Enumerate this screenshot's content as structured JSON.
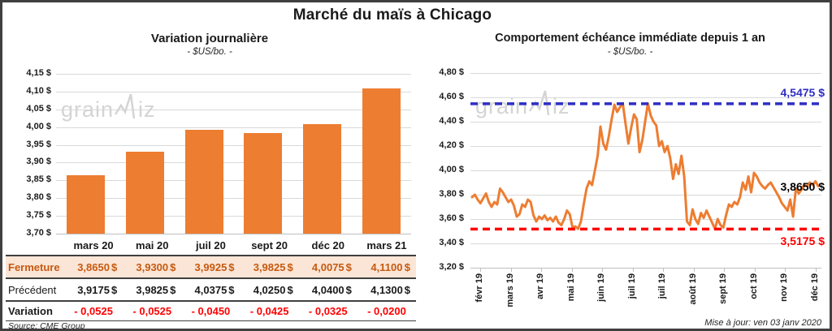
{
  "page": {
    "title": "Marché du maïs à Chicago",
    "source_note": "Source: CME Group",
    "update_note": "Mise à jour: ven 03 janv 2020",
    "watermark": {
      "prefix": "grain",
      "suffix": "iz"
    }
  },
  "colors": {
    "series_orange": "#ED7D31",
    "highlight_row_bg": "#FBE5D6",
    "highlight_row_text": "#C55A11",
    "negative_red": "#FF0000",
    "resistance_blue": "#2E2EC4",
    "grid": "#D9D9D9",
    "frame": "#3F3F3F",
    "watermark": "#D4D4D4"
  },
  "chart_data": [
    {
      "type": "bar",
      "title": "Variation journalière",
      "subtitle": "- $US/bo. -",
      "categories": [
        "mars 20",
        "mai 20",
        "juil 20",
        "sept 20",
        "déc 20",
        "mars 21"
      ],
      "values": [
        3.865,
        3.93,
        3.9925,
        3.9825,
        4.0075,
        4.11
      ],
      "ylim": [
        3.7,
        4.15
      ],
      "ytick_labels": [
        "4,15 $",
        "4,10 $",
        "4,05 $",
        "4,00 $",
        "3,95 $",
        "3,90 $",
        "3,85 $",
        "3,80 $",
        "3,75 $",
        "3,70 $"
      ],
      "grid": true,
      "legend": "none"
    },
    {
      "type": "line",
      "title": "Comportement échéance immédiate depuis 1 an",
      "subtitle": "- $US/bo. -",
      "x_tick_labels": [
        "févr 19",
        "mars 19",
        "avr 19",
        "mai 19",
        "juin 19",
        "juil 19",
        "juil 19",
        "août 19",
        "sept 19",
        "oct 19",
        "nov 19",
        "déc 19"
      ],
      "ylim": [
        3.2,
        4.8
      ],
      "ytick_labels": [
        "4,80 $",
        "4,60 $",
        "4,40 $",
        "4,20 $",
        "4,00 $",
        "3,80 $",
        "3,60 $",
        "3,40 $",
        "3,20 $"
      ],
      "grid": true,
      "legend": "none",
      "values": [
        3.78,
        3.8,
        3.76,
        3.73,
        3.77,
        3.81,
        3.74,
        3.7,
        3.74,
        3.72,
        3.85,
        3.82,
        3.78,
        3.74,
        3.76,
        3.71,
        3.62,
        3.64,
        3.72,
        3.7,
        3.76,
        3.74,
        3.63,
        3.58,
        3.62,
        3.6,
        3.63,
        3.59,
        3.61,
        3.58,
        3.62,
        3.57,
        3.55,
        3.6,
        3.67,
        3.64,
        3.53,
        3.54,
        3.52,
        3.58,
        3.72,
        3.85,
        3.91,
        3.88,
        4.0,
        4.12,
        4.36,
        4.22,
        4.17,
        4.28,
        4.42,
        4.54,
        4.48,
        4.52,
        4.55,
        4.38,
        4.22,
        4.35,
        4.46,
        4.42,
        4.15,
        4.25,
        4.4,
        4.55,
        4.45,
        4.4,
        4.37,
        4.2,
        4.24,
        4.15,
        4.2,
        4.1,
        3.93,
        4.05,
        3.97,
        4.12,
        3.95,
        3.58,
        3.55,
        3.68,
        3.6,
        3.56,
        3.65,
        3.61,
        3.67,
        3.62,
        3.57,
        3.52,
        3.6,
        3.55,
        3.53,
        3.63,
        3.72,
        3.7,
        3.74,
        3.72,
        3.78,
        3.9,
        3.84,
        3.95,
        3.82,
        3.98,
        3.95,
        3.9,
        3.87,
        3.85,
        3.88,
        3.9,
        3.86,
        3.82,
        3.78,
        3.73,
        3.7,
        3.67,
        3.76,
        3.62,
        3.85,
        3.81,
        3.84,
        3.88,
        3.87,
        3.9,
        3.88,
        3.91,
        3.87
      ],
      "annotations": [
        {
          "label": "4,5475 $",
          "value": 4.5475,
          "style": "dashed",
          "color": "#2E2EC4"
        },
        {
          "label": "3,5175 $",
          "value": 3.5175,
          "style": "dashed",
          "color": "#FF0000"
        },
        {
          "label": "3,8650 $",
          "value": 3.865,
          "style": "none",
          "color": "#000000"
        }
      ]
    }
  ],
  "table": {
    "header": [
      "mars 20",
      "mai 20",
      "juil 20",
      "sept 20",
      "déc 20",
      "mars 21"
    ],
    "currency": "$",
    "rows": [
      {
        "label": "Fermeture",
        "values": [
          "3,8650",
          "3,9300",
          "3,9925",
          "3,9825",
          "4,0075",
          "4,1100"
        ],
        "suffix": true,
        "style": "highlight"
      },
      {
        "label": "Précédent",
        "values": [
          "3,9175",
          "3,9825",
          "4,0375",
          "4,0250",
          "4,0400",
          "4,1300"
        ],
        "suffix": true,
        "style": "normal"
      },
      {
        "label": "Variation",
        "values": [
          "- 0,0525",
          "- 0,0525",
          "- 0,0450",
          "- 0,0425",
          "- 0,0325",
          "- 0,0200"
        ],
        "suffix": false,
        "style": "negative"
      }
    ]
  }
}
